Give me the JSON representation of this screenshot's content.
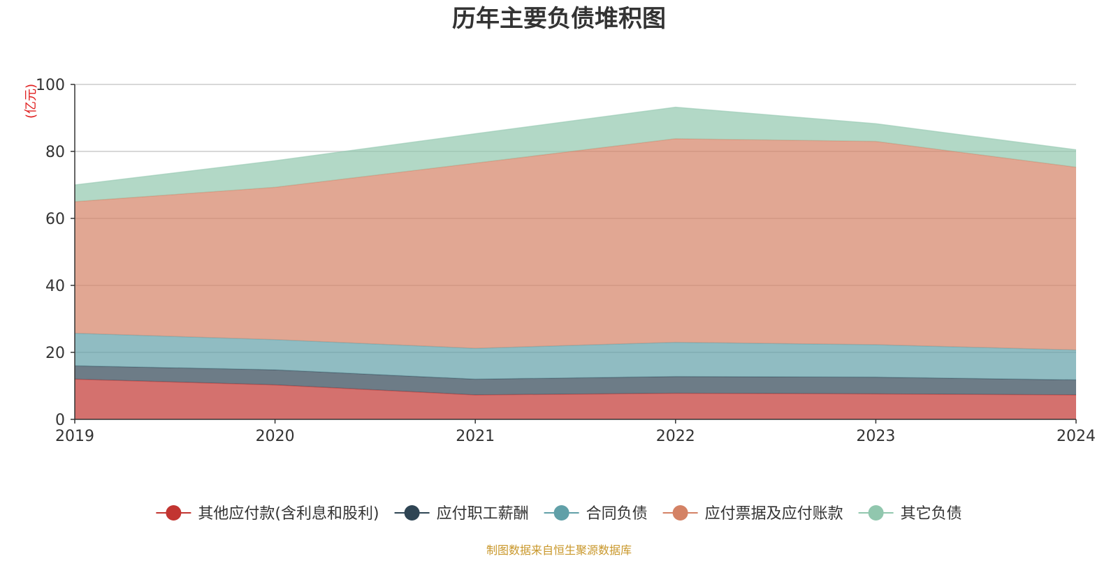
{
  "title": "历年主要负债堆积图",
  "unit": "(亿元)",
  "source": "制图数据来自恒生聚源数据库",
  "colors": {
    "grid": "#cccccc",
    "axis": "#333333",
    "unit": "#e02020",
    "source": "#c9972a"
  },
  "chart_data": {
    "type": "area",
    "stacked": true,
    "title": "历年主要负债堆积图",
    "ylabel": "(亿元)",
    "x": [
      "2019",
      "2020",
      "2021",
      "2022",
      "2023",
      "2024"
    ],
    "ylim": [
      0,
      100
    ],
    "yticks": [
      0,
      20,
      40,
      60,
      80,
      100
    ],
    "grid": true,
    "legend_position": "bottom",
    "series": [
      {
        "name": "其他应付款(含利息和股利)",
        "color": "#c23531",
        "values": [
          12.0,
          10.3,
          7.3,
          7.8,
          7.6,
          7.3
        ]
      },
      {
        "name": "应付职工薪酬",
        "color": "#2f4554",
        "values": [
          4.0,
          4.5,
          4.7,
          5.0,
          5.0,
          4.5
        ]
      },
      {
        "name": "合同负债",
        "color": "#61a0a8",
        "values": [
          9.7,
          9.0,
          9.2,
          10.2,
          9.7,
          8.9
        ]
      },
      {
        "name": "应付票据及应付账款",
        "color": "#d48265",
        "values": [
          39.3,
          45.5,
          55.3,
          60.8,
          60.7,
          54.6
        ]
      },
      {
        "name": "其它负债",
        "color": "#91c7ae",
        "values": [
          5.0,
          7.9,
          8.8,
          9.4,
          5.3,
          5.2
        ]
      }
    ]
  }
}
